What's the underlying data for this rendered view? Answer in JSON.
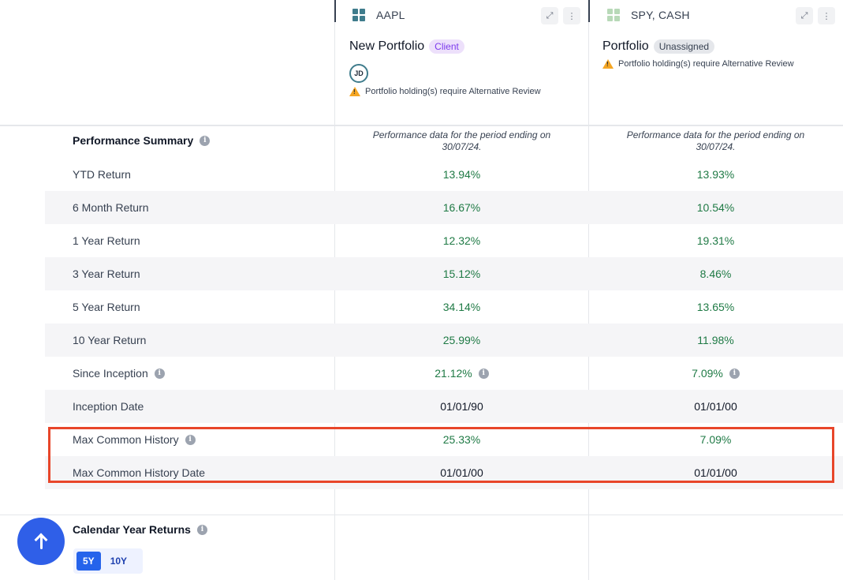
{
  "columns": [
    {
      "tab_title": "AAPL",
      "portfolio_name": "New Portfolio",
      "badge": "Client",
      "avatar": "JD",
      "warning": "Portfolio holding(s) require Alternative Review",
      "note": "Performance data for the period ending on 30/07/24."
    },
    {
      "tab_title": "SPY, CASH",
      "portfolio_name": "Portfolio",
      "badge": "Unassigned",
      "warning": "Portfolio holding(s) require Alternative Review",
      "note": "Performance data for the period ending on 30/07/24."
    }
  ],
  "summary": {
    "title": "Performance Summary",
    "rows": [
      {
        "label": "YTD Return",
        "a": "13.94%",
        "b": "13.93%"
      },
      {
        "label": "6 Month Return",
        "a": "16.67%",
        "b": "10.54%"
      },
      {
        "label": "1 Year Return",
        "a": "12.32%",
        "b": "19.31%"
      },
      {
        "label": "3 Year Return",
        "a": "15.12%",
        "b": "8.46%"
      },
      {
        "label": "5 Year Return",
        "a": "34.14%",
        "b": "13.65%"
      },
      {
        "label": "10 Year Return",
        "a": "25.99%",
        "b": "11.98%"
      },
      {
        "label": "Since Inception",
        "a": "21.12%",
        "b": "7.09%"
      },
      {
        "label": "Inception Date",
        "a": "01/01/90",
        "b": "01/01/00"
      },
      {
        "label": "Max Common History",
        "a": "25.33%",
        "b": "7.09%"
      },
      {
        "label": "Max Common History Date",
        "a": "01/01/00",
        "b": "01/01/00"
      }
    ]
  },
  "calendar": {
    "title": "Calendar Year Returns",
    "options": [
      "5Y",
      "10Y"
    ],
    "selected": "5Y"
  },
  "colors": {
    "positive": "#1f7a45",
    "highlight": "#e8462a",
    "accent": "#2f5fe8"
  }
}
